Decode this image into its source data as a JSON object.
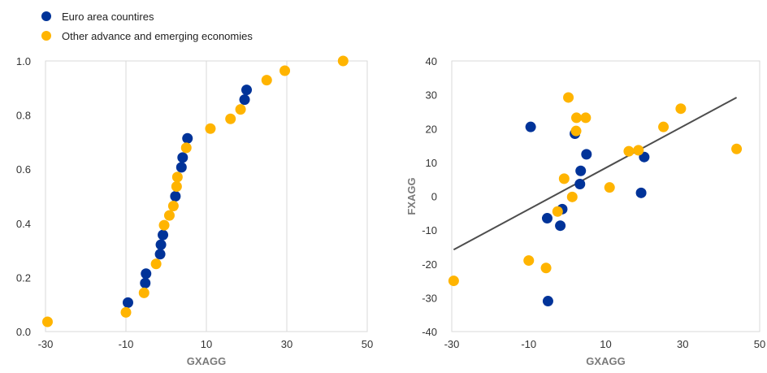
{
  "legend": {
    "items": [
      {
        "label": "Euro area countires",
        "color": "#003399"
      },
      {
        "label": "Other advance and emerging economies",
        "color": "#FFB400"
      }
    ],
    "placement": "top-left"
  },
  "chart_data": [
    {
      "type": "scatter",
      "xlabel": "GXAGG",
      "ylabel": "",
      "xlim": [
        -30,
        50
      ],
      "ylim": [
        0,
        1
      ],
      "xticks": [
        "-30",
        "-10",
        "10",
        "30",
        "50"
      ],
      "yticks": [
        "0.0",
        "0.2",
        "0.4",
        "0.6",
        "0.8",
        "1.0"
      ],
      "grid": "vertical",
      "series": [
        {
          "name": "Euro area countires",
          "color": "#003399",
          "points": [
            {
              "x": -9.5,
              "y": 0.107
            },
            {
              "x": -5.2,
              "y": 0.179
            },
            {
              "x": -5.0,
              "y": 0.214
            },
            {
              "x": -1.5,
              "y": 0.286
            },
            {
              "x": -1.3,
              "y": 0.321
            },
            {
              "x": -0.8,
              "y": 0.357
            },
            {
              "x": 2.3,
              "y": 0.5
            },
            {
              "x": 3.8,
              "y": 0.607
            },
            {
              "x": 4.1,
              "y": 0.643
            },
            {
              "x": 5.3,
              "y": 0.714
            },
            {
              "x": 19.5,
              "y": 0.857
            },
            {
              "x": 20.0,
              "y": 0.893
            }
          ]
        },
        {
          "name": "Other advance and emerging economies",
          "color": "#FFB400",
          "points": [
            {
              "x": -29.5,
              "y": 0.036
            },
            {
              "x": -10.0,
              "y": 0.071
            },
            {
              "x": -5.5,
              "y": 0.143
            },
            {
              "x": -2.5,
              "y": 0.25
            },
            {
              "x": -0.5,
              "y": 0.393
            },
            {
              "x": 0.8,
              "y": 0.429
            },
            {
              "x": 1.8,
              "y": 0.464
            },
            {
              "x": 2.6,
              "y": 0.536
            },
            {
              "x": 2.8,
              "y": 0.571
            },
            {
              "x": 5.0,
              "y": 0.679
            },
            {
              "x": 11.0,
              "y": 0.75
            },
            {
              "x": 16.0,
              "y": 0.786
            },
            {
              "x": 18.5,
              "y": 0.821
            },
            {
              "x": 25.0,
              "y": 0.929
            },
            {
              "x": 29.5,
              "y": 0.964
            },
            {
              "x": 44.0,
              "y": 1.0
            }
          ]
        }
      ]
    },
    {
      "type": "scatter",
      "xlabel": "GXAGG",
      "ylabel": "FXAGG",
      "xlim": [
        -30,
        50
      ],
      "ylim": [
        -40,
        40
      ],
      "xticks": [
        "-30",
        "-10",
        "10",
        "30",
        "50"
      ],
      "yticks": [
        "-40",
        "-30",
        "-20",
        "-10",
        "0",
        "10",
        "20",
        "30",
        "40"
      ],
      "grid": "none",
      "trendline": {
        "x": [
          -29.5,
          44.0
        ],
        "y": [
          -15.8,
          29.2
        ],
        "color": "#4d4d4d"
      },
      "series": [
        {
          "name": "Euro area countires",
          "color": "#003399",
          "points": [
            {
              "x": -9.5,
              "y": 20.5
            },
            {
              "x": -5.2,
              "y": -6.5
            },
            {
              "x": -5.0,
              "y": -31.0
            },
            {
              "x": -1.8,
              "y": -8.7
            },
            {
              "x": -1.3,
              "y": -3.8
            },
            {
              "x": 2.0,
              "y": 18.5
            },
            {
              "x": 3.3,
              "y": 3.6
            },
            {
              "x": 3.5,
              "y": 7.5
            },
            {
              "x": 5.0,
              "y": 12.4
            },
            {
              "x": 19.2,
              "y": 1.0
            },
            {
              "x": 20.0,
              "y": 11.6
            }
          ]
        },
        {
          "name": "Other advance and emerging economies",
          "color": "#FFB400",
          "points": [
            {
              "x": -29.5,
              "y": -25.0
            },
            {
              "x": -10.0,
              "y": -19.0
            },
            {
              "x": -5.5,
              "y": -21.2
            },
            {
              "x": -2.5,
              "y": -4.5
            },
            {
              "x": -0.8,
              "y": 5.2
            },
            {
              "x": 0.3,
              "y": 29.2
            },
            {
              "x": 1.3,
              "y": -0.2
            },
            {
              "x": 2.3,
              "y": 19.3
            },
            {
              "x": 2.4,
              "y": 23.2
            },
            {
              "x": 4.8,
              "y": 23.2
            },
            {
              "x": 11.0,
              "y": 2.6
            },
            {
              "x": 16.0,
              "y": 13.3
            },
            {
              "x": 18.5,
              "y": 13.6
            },
            {
              "x": 25.0,
              "y": 20.5
            },
            {
              "x": 29.5,
              "y": 25.9
            },
            {
              "x": 44.0,
              "y": 14.0
            }
          ]
        }
      ]
    }
  ]
}
